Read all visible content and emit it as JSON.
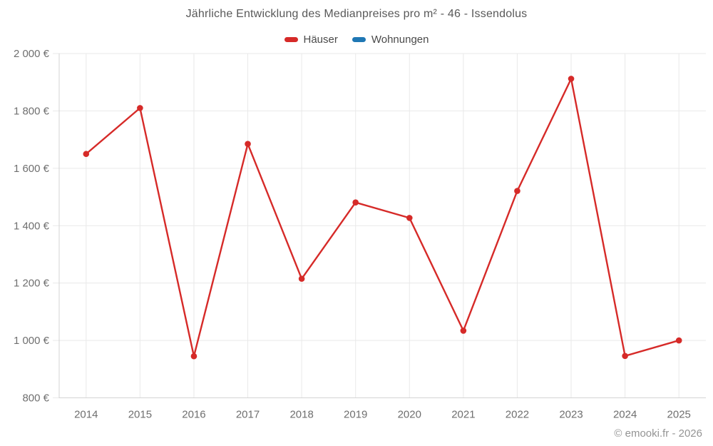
{
  "chart_data": {
    "type": "line",
    "title": "Jährliche Entwicklung des Medianpreises pro m² - 46 - Issendolus",
    "categories": [
      "2014",
      "2015",
      "2016",
      "2017",
      "2018",
      "2019",
      "2020",
      "2021",
      "2022",
      "2023",
      "2024",
      "2025"
    ],
    "series": [
      {
        "name": "Häuser",
        "color": "#d62a28",
        "values": [
          1650,
          1810,
          945,
          1685,
          1215,
          1481,
          1427,
          1034,
          1521,
          1912,
          946,
          1000
        ]
      },
      {
        "name": "Wohnungen",
        "color": "#1f77b4",
        "values": []
      }
    ],
    "ylim": [
      800,
      2000
    ],
    "ytick_step": 200,
    "ytick_format": "{value} €",
    "grid": true,
    "legend_position": "top",
    "marker": "circle"
  },
  "footer": {
    "copyright": "© emooki.fr - 2026"
  }
}
